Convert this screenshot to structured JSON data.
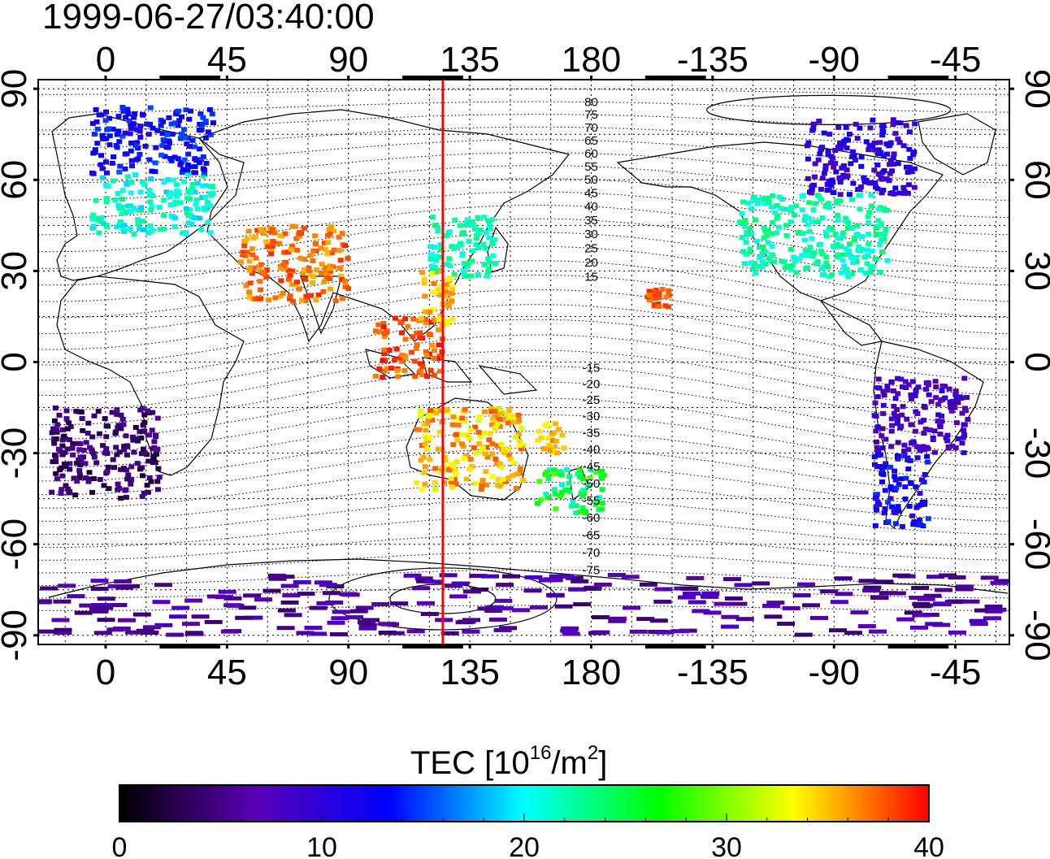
{
  "timestamp": "1999-06-27/03:40:00",
  "colorbar": {
    "title_prefix": "TEC  [10",
    "title_exp1": "16",
    "title_mid": "/m",
    "title_exp2": "2",
    "title_suffix": "]",
    "min": 0,
    "max": 40,
    "ticks": [
      0,
      10,
      20,
      30,
      40
    ],
    "colormap": [
      "#000000",
      "#5a00b4",
      "#0000ff",
      "#00ffff",
      "#00ff00",
      "#ffff00",
      "#ff0000"
    ]
  },
  "map": {
    "lon_ticks": [
      "0",
      "45",
      "90",
      "135",
      "180",
      "-135",
      "-90",
      "-45"
    ],
    "lat_ticks": [
      "90",
      "60",
      "30",
      "0",
      "-30",
      "-60",
      "-90"
    ],
    "meridian_longitude": 125,
    "meridian_color": "#ff0000",
    "contour_labels_north": [
      "80",
      "75",
      "70",
      "65",
      "60",
      "55",
      "50",
      "45",
      "40",
      "35",
      "30",
      "25",
      "20",
      "15"
    ],
    "contour_labels_south": [
      "-15",
      "-20",
      "-25",
      "-30",
      "-35",
      "-40",
      "-45",
      "-50",
      "-55",
      "-60",
      "-65",
      "-70",
      "-75"
    ]
  },
  "chart_data": {
    "type": "heatmap",
    "projection": "equirectangular",
    "xlim": [
      -25,
      335
    ],
    "ylim": [
      -93,
      93
    ],
    "value_unit": "TEC [10^16/m^2]",
    "regions": [
      {
        "lon": [
          -5,
          40
        ],
        "lat": [
          42,
          62
        ],
        "tec": 21,
        "spread": 2.5
      },
      {
        "lon": [
          -5,
          40
        ],
        "lat": [
          62,
          84
        ],
        "tec": 13,
        "spread": 2.5
      },
      {
        "lon": [
          50,
          90
        ],
        "lat": [
          20,
          45
        ],
        "tec": 37,
        "spread": 2
      },
      {
        "lon": [
          100,
          125
        ],
        "lat": [
          -5,
          15
        ],
        "tec": 38,
        "spread": 2
      },
      {
        "lon": [
          120,
          145
        ],
        "lat": [
          28,
          48
        ],
        "tec": 22,
        "spread": 2
      },
      {
        "lon": [
          117,
          130
        ],
        "lat": [
          12,
          30
        ],
        "tec": 35,
        "spread": 2
      },
      {
        "lon": [
          115,
          155
        ],
        "lat": [
          -42,
          -15
        ],
        "tec": 35,
        "spread": 3
      },
      {
        "lon": [
          160,
          185
        ],
        "lat": [
          -50,
          -35
        ],
        "tec": 25,
        "spread": 4
      },
      {
        "lon": [
          160,
          170
        ],
        "lat": [
          -30,
          -20
        ],
        "tec": 35,
        "spread": 2
      },
      {
        "lon": [
          200,
          210
        ],
        "lat": [
          18,
          24
        ],
        "tec": 38,
        "spread": 1.5
      },
      {
        "lon": [
          235,
          290
        ],
        "lat": [
          28,
          55
        ],
        "tec": 22,
        "spread": 2
      },
      {
        "lon": [
          260,
          300
        ],
        "lat": [
          55,
          80
        ],
        "tec": 10,
        "spread": 2.5
      },
      {
        "lon": [
          285,
          320
        ],
        "lat": [
          -30,
          -5
        ],
        "tec": 8,
        "spread": 3
      },
      {
        "lon": [
          285,
          305
        ],
        "lat": [
          -55,
          -30
        ],
        "tec": 12,
        "spread": 3
      },
      {
        "lon": [
          -20,
          20
        ],
        "lat": [
          -15,
          -45
        ],
        "tec": 4,
        "spread": 2
      },
      {
        "lon": [
          -25,
          335
        ],
        "lat": [
          -70,
          -90
        ],
        "tec": 6,
        "spread": 2
      }
    ]
  }
}
